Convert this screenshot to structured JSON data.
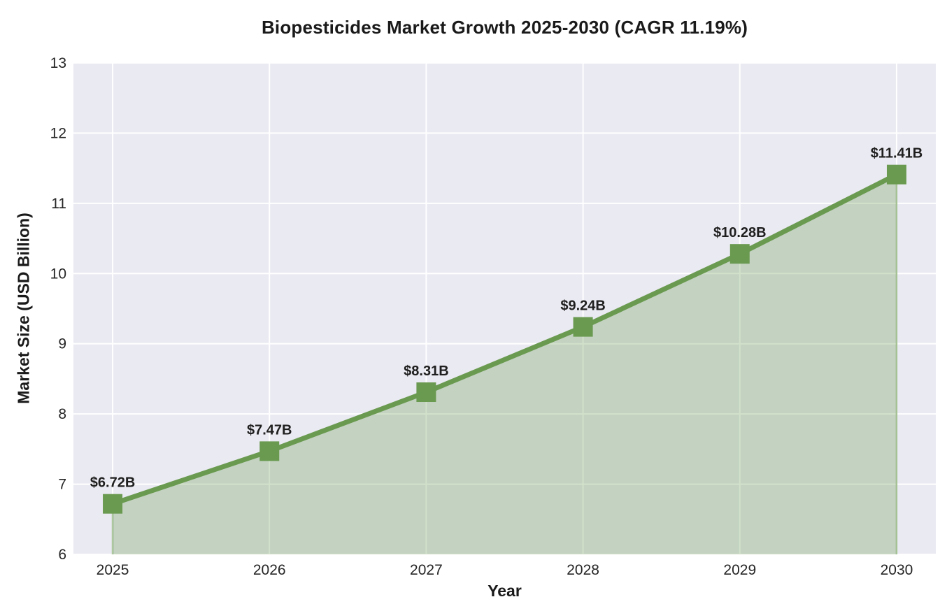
{
  "chart_data": {
    "type": "area",
    "title": "Biopesticides Market Growth 2025-2030 (CAGR 11.19%)",
    "xlabel": "Year",
    "ylabel": "Market Size (USD Billion)",
    "x": [
      2025,
      2026,
      2027,
      2028,
      2029,
      2030
    ],
    "x_tick_labels": [
      "2025",
      "2026",
      "2027",
      "2028",
      "2029",
      "2030"
    ],
    "values": [
      6.72,
      7.47,
      8.31,
      9.24,
      10.28,
      11.41
    ],
    "point_labels": [
      "$6.72B",
      "$7.47B",
      "$8.31B",
      "$9.24B",
      "$10.28B",
      "$11.41B"
    ],
    "y_ticks": [
      6,
      7,
      8,
      9,
      10,
      11,
      12,
      13
    ],
    "ylim": [
      6,
      13
    ],
    "xlim": [
      2024.75,
      2030.25
    ],
    "grid": true,
    "legend": false,
    "cagr_percent": 11.19,
    "colors": {
      "line": "#6a9a50",
      "marker": "#6a9a50",
      "fill": "rgba(106, 154, 80, 0.30)",
      "fill_edge": "rgba(106, 154, 80, 0.50)",
      "plot_background": "#eaeaf2",
      "grid": "#ffffff",
      "text": "#262626"
    }
  }
}
